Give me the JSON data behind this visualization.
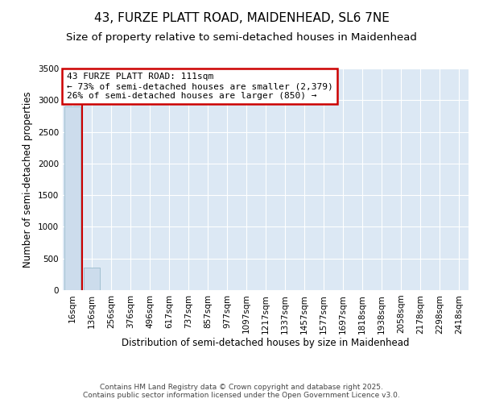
{
  "title_line1": "43, FURZE PLATT ROAD, MAIDENHEAD, SL6 7NE",
  "title_line2": "Size of property relative to semi-detached houses in Maidenhead",
  "xlabel": "Distribution of semi-detached houses by size in Maidenhead",
  "ylabel": "Number of semi-detached properties",
  "bar_labels": [
    "16sqm",
    "136sqm",
    "256sqm",
    "376sqm",
    "496sqm",
    "617sqm",
    "737sqm",
    "857sqm",
    "977sqm",
    "1097sqm",
    "1217sqm",
    "1337sqm",
    "1457sqm",
    "1577sqm",
    "1697sqm",
    "1818sqm",
    "1938sqm",
    "2058sqm",
    "2178sqm",
    "2298sqm",
    "2418sqm"
  ],
  "bar_values": [
    2900,
    360,
    4,
    2,
    1,
    0,
    0,
    0,
    0,
    0,
    0,
    0,
    0,
    0,
    0,
    0,
    0,
    0,
    0,
    0,
    0
  ],
  "bar_color": "#ccdcec",
  "bar_edgecolor": "#99bbcc",
  "property_line_x": 0.5,
  "property_line_color": "#cc0000",
  "annotation_text": "43 FURZE PLATT ROAD: 111sqm\n← 73% of semi-detached houses are smaller (2,379)\n26% of semi-detached houses are larger (850) →",
  "annotation_box_color": "#ffffff",
  "annotation_box_edgecolor": "#cc0000",
  "ylim": [
    0,
    3500
  ],
  "yticks": [
    0,
    500,
    1000,
    1500,
    2000,
    2500,
    3000,
    3500
  ],
  "footer_line1": "Contains HM Land Registry data © Crown copyright and database right 2025.",
  "footer_line2": "Contains public sector information licensed under the Open Government Licence v3.0.",
  "plot_bg_color": "#dce8f4",
  "fig_bg_color": "#ffffff",
  "grid_color": "#ffffff",
  "title_fontsize": 11,
  "subtitle_fontsize": 9.5,
  "tick_fontsize": 7.5,
  "ylabel_fontsize": 8.5,
  "xlabel_fontsize": 8.5,
  "annotation_fontsize": 8,
  "footer_fontsize": 6.5
}
